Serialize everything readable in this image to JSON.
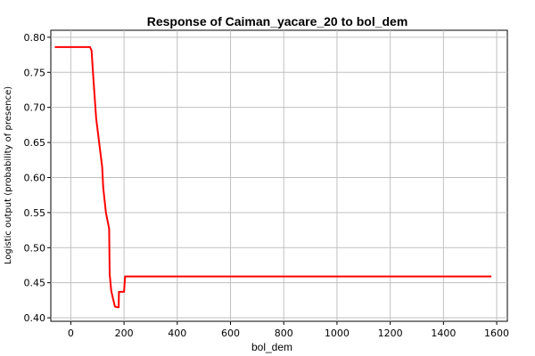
{
  "chart_data": {
    "type": "line",
    "title": "Response of Caiman_yacare_20 to bol_dem",
    "xlabel": "bol_dem",
    "ylabel": "Logistic output (probability of presence)",
    "xlim": [
      -75,
      1640
    ],
    "ylim": [
      0.395,
      0.81
    ],
    "xticks": [
      0,
      200,
      400,
      600,
      800,
      1000,
      1200,
      1400,
      1600
    ],
    "yticks": [
      0.4,
      0.45,
      0.5,
      0.55,
      0.6,
      0.65,
      0.7,
      0.75,
      0.8
    ],
    "ytick_labels": [
      "0.40",
      "0.45",
      "0.50",
      "0.55",
      "0.60",
      "0.65",
      "0.70",
      "0.75",
      "0.80"
    ],
    "grid": true,
    "series": [
      {
        "color": "#ff0000",
        "points": [
          [
            -60,
            0.786
          ],
          [
            72,
            0.786
          ],
          [
            78,
            0.781
          ],
          [
            85,
            0.74
          ],
          [
            95,
            0.685
          ],
          [
            105,
            0.655
          ],
          [
            118,
            0.615
          ],
          [
            122,
            0.585
          ],
          [
            132,
            0.55
          ],
          [
            144,
            0.527
          ],
          [
            146,
            0.462
          ],
          [
            152,
            0.438
          ],
          [
            160,
            0.425
          ],
          [
            166,
            0.416
          ],
          [
            176,
            0.415
          ],
          [
            180,
            0.415
          ],
          [
            181,
            0.437
          ],
          [
            200,
            0.437
          ],
          [
            204,
            0.459
          ],
          [
            1580,
            0.459
          ]
        ]
      }
    ]
  }
}
